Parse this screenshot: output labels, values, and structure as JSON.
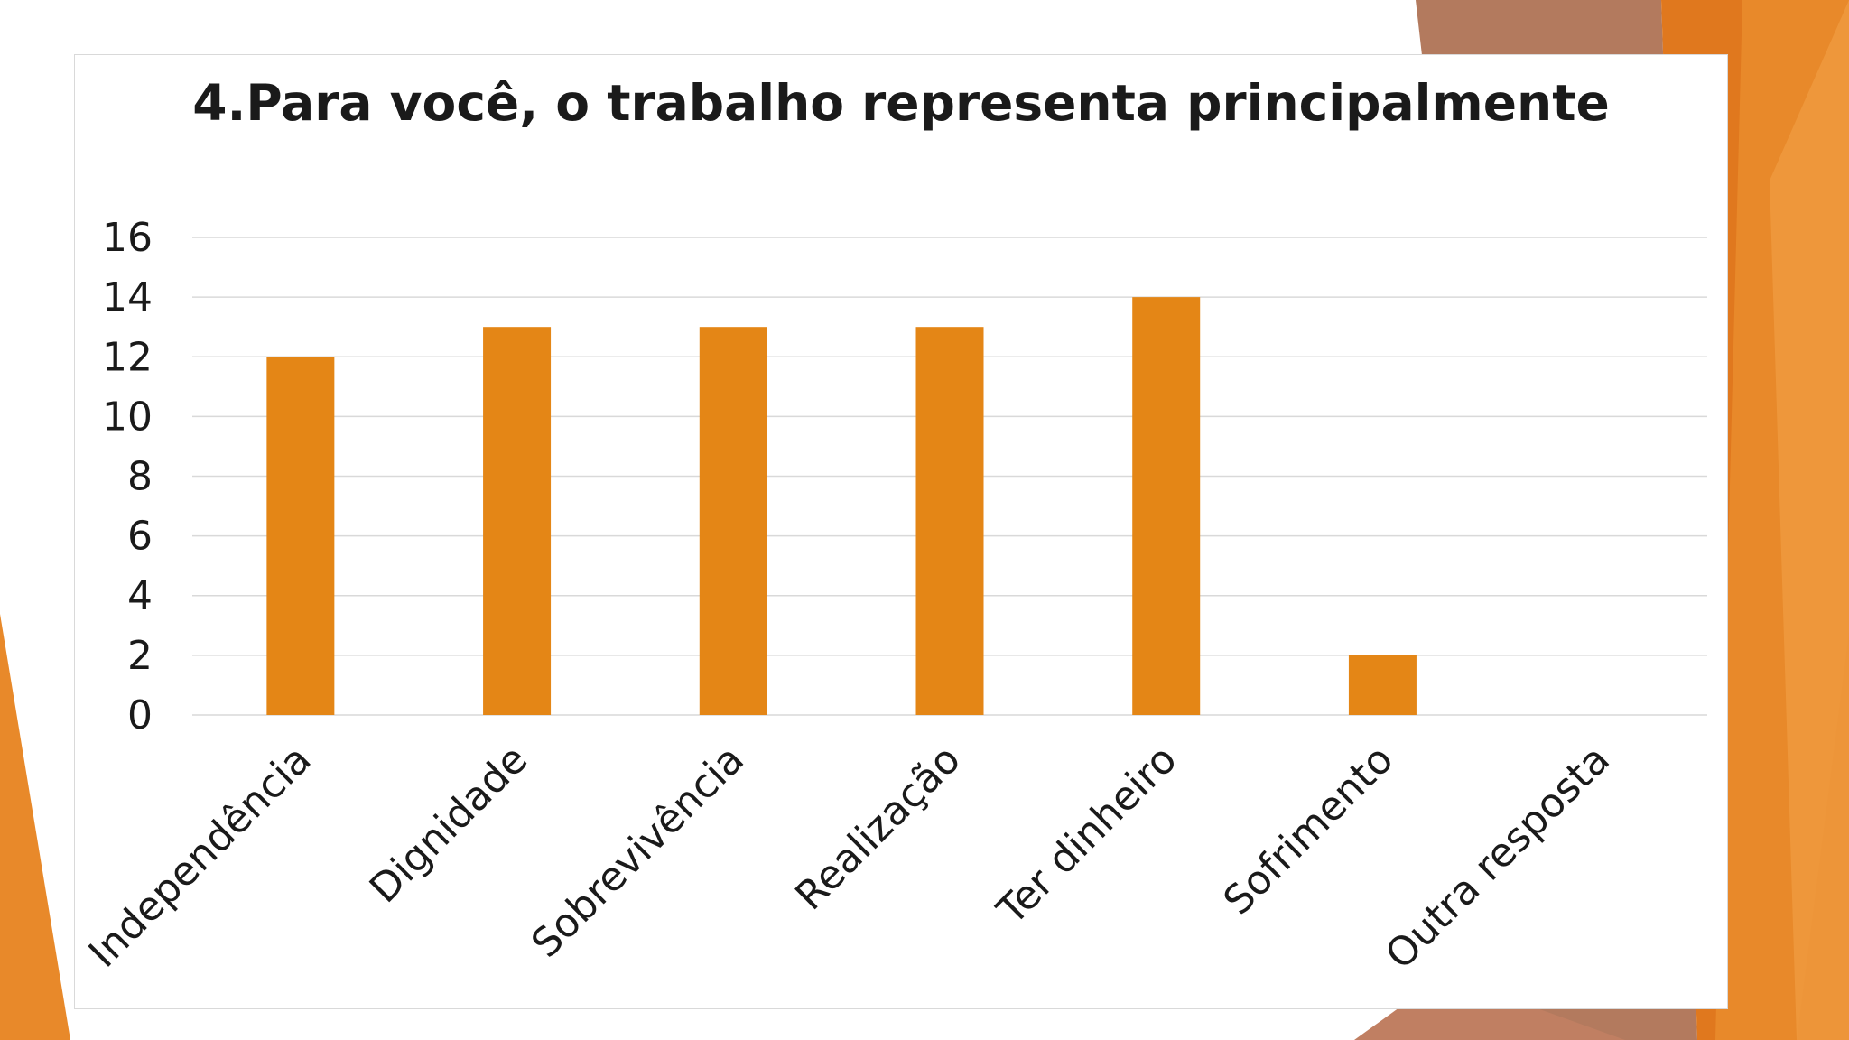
{
  "colors": {
    "bar": "#E48616",
    "gridline": "#D9D9D9",
    "text": "#1A1A1A",
    "accent_orange": "#E8892A",
    "accent_brown": "#B37A5E"
  },
  "chart_data": {
    "type": "bar",
    "title": "4.Para você, o trabalho representa principalmente",
    "categories": [
      "Independência",
      "Dignidade",
      "Sobrevivência",
      "Realização",
      "Ter dinheiro",
      "Sofrimento",
      "Outra resposta"
    ],
    "values": [
      12,
      13,
      13,
      13,
      14,
      2,
      0
    ],
    "xlabel": "",
    "ylabel": "",
    "ylim": [
      0,
      16
    ],
    "yticks": [
      0,
      2,
      4,
      6,
      8,
      10,
      12,
      14,
      16
    ],
    "grid": true,
    "legend": "none"
  }
}
